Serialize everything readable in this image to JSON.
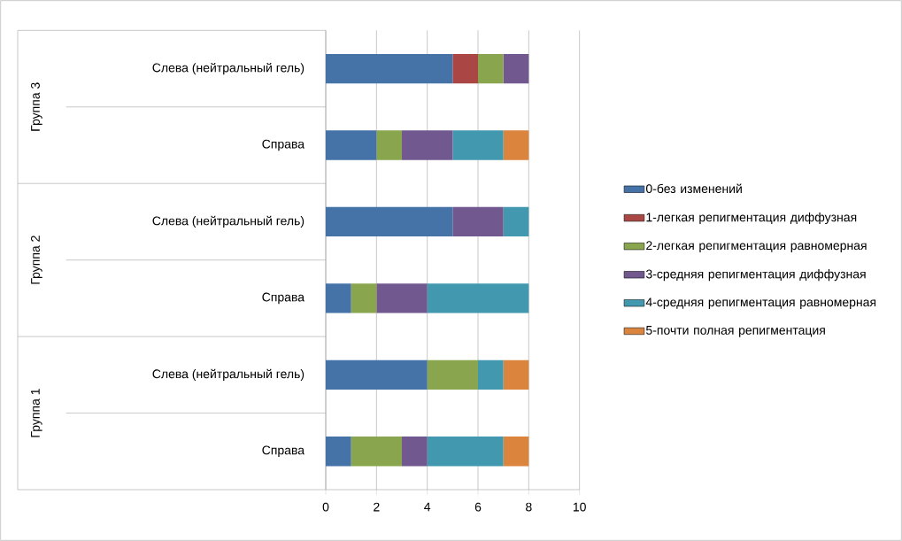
{
  "chart_data": {
    "type": "bar",
    "orientation": "horizontal",
    "stacked": true,
    "categories": [
      "Слева (нейтральный гель)",
      "Справа",
      "Слева (нейтральный гель)",
      "Справа",
      "Слева (нейтральный гель)",
      "Справа"
    ],
    "annotations": [
      "Группа 3",
      "Группа 2",
      "Группа 1"
    ],
    "series": [
      {
        "name": "0-без изменений",
        "color": "#4572a7",
        "values": [
          5,
          2,
          5,
          1,
          4,
          1
        ]
      },
      {
        "name": "1-легкая репигментация диффузная",
        "color": "#aa4643",
        "values": [
          1,
          0,
          0,
          0,
          0,
          0
        ]
      },
      {
        "name": "2-легкая репигментация равномерная",
        "color": "#89a54e",
        "values": [
          1,
          1,
          0,
          1,
          2,
          2
        ]
      },
      {
        "name": "3-средняя репигментация диффузная",
        "color": "#71588f",
        "values": [
          1,
          2,
          2,
          2,
          0,
          1
        ]
      },
      {
        "name": "4-средняя репигментация равномерная",
        "color": "#4198af",
        "values": [
          0,
          2,
          1,
          4,
          1,
          3
        ]
      },
      {
        "name": "5-почти полная репигментация",
        "color": "#db843d",
        "values": [
          0,
          1,
          0,
          0,
          1,
          1
        ]
      }
    ],
    "xlim": [
      0,
      10
    ],
    "xticks": [
      0,
      2,
      4,
      6,
      8,
      10
    ],
    "grid": "x",
    "legend": "right"
  }
}
